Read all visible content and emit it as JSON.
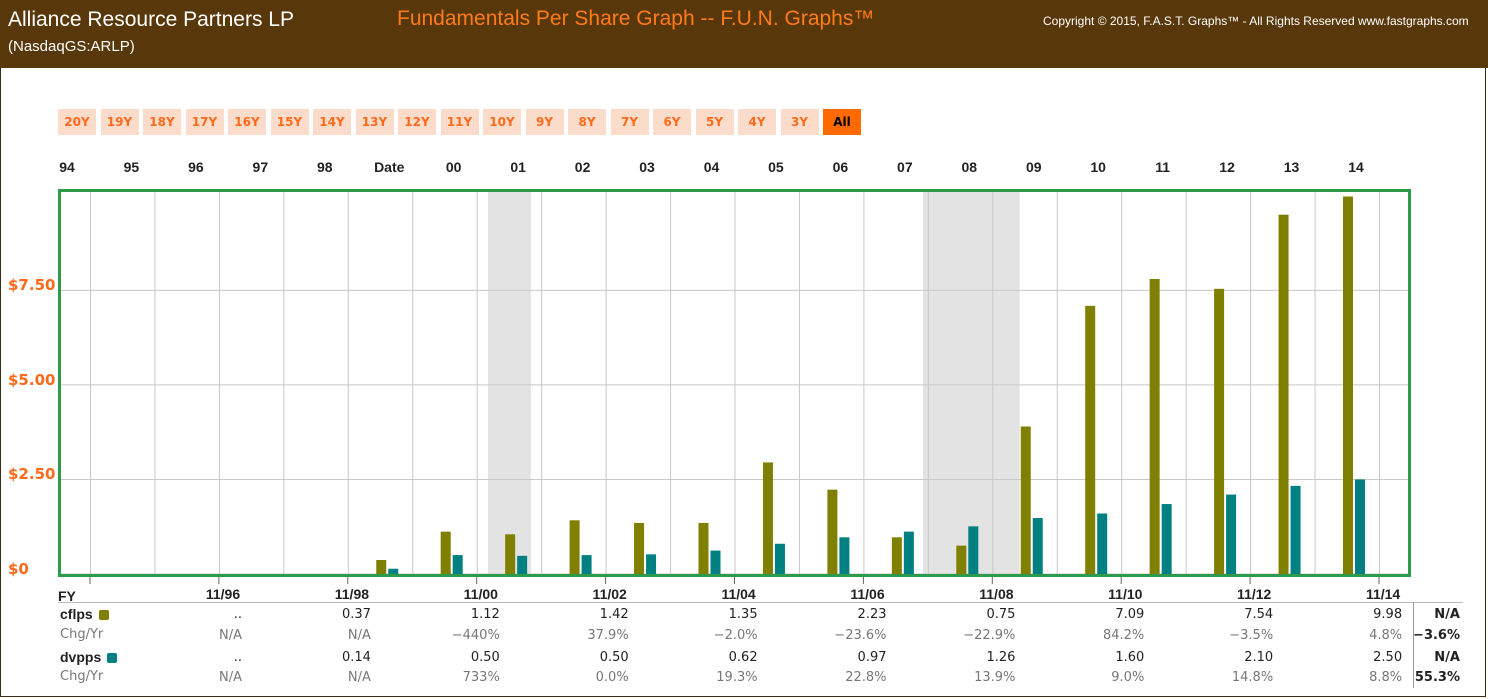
{
  "header": {
    "company": "Alliance Resource Partners LP",
    "ticker": "(NasdaqGS:ARLP)",
    "graph_title": "Fundamentals Per Share Graph -- F.U.N. Graphs™",
    "copyright": "Copyright © 2015, F.A.S.T. Graphs™ - All Rights Reserved www.fastgraphs.com"
  },
  "range_buttons": [
    "20Y",
    "19Y",
    "18Y",
    "17Y",
    "16Y",
    "15Y",
    "14Y",
    "13Y",
    "12Y",
    "11Y",
    "10Y",
    "9Y",
    "8Y",
    "7Y",
    "6Y",
    "5Y",
    "4Y",
    "3Y",
    "All"
  ],
  "active_range": "All",
  "colors": {
    "cflps": "#808000",
    "dvpps": "#008080",
    "recession": "#e3e3e3",
    "border": "#2e9b4a",
    "accent": "#ff6a1a"
  },
  "chart_data": {
    "type": "bar",
    "top_years": [
      "94",
      "95",
      "96",
      "97",
      "98",
      "Date",
      "00",
      "01",
      "02",
      "03",
      "04",
      "05",
      "06",
      "07",
      "08",
      "09",
      "10",
      "11",
      "12",
      "13",
      "14"
    ],
    "y_ticks": [
      "$0",
      "$2.50",
      "$5.00",
      "$7.50"
    ],
    "ylim": [
      0,
      10.1
    ],
    "grid": true,
    "recessions": [
      [
        "2001-03",
        "2001-11"
      ],
      [
        "2007-12",
        "2009-06"
      ]
    ],
    "categories": [
      "1999",
      "2000",
      "2001",
      "2002",
      "2003",
      "2004",
      "2005",
      "2006",
      "2007",
      "2008",
      "2009",
      "2010",
      "2011",
      "2012",
      "2013",
      "2014"
    ],
    "series": [
      {
        "name": "cflps",
        "values": [
          0.37,
          1.12,
          1.05,
          1.42,
          1.35,
          1.35,
          2.95,
          2.23,
          0.97,
          0.75,
          3.9,
          7.09,
          7.8,
          7.54,
          9.5,
          9.98
        ]
      },
      {
        "name": "dvpps",
        "values": [
          0.14,
          0.5,
          0.48,
          0.5,
          0.52,
          0.62,
          0.8,
          0.97,
          1.12,
          1.26,
          1.48,
          1.6,
          1.85,
          2.1,
          2.33,
          2.5
        ]
      }
    ]
  },
  "table": {
    "fy_label": "FY",
    "dates": [
      "11/96",
      "11/98",
      "11/00",
      "11/02",
      "11/04",
      "11/06",
      "11/08",
      "11/10",
      "11/12",
      "11/14"
    ],
    "rows": [
      {
        "label": "cflps",
        "kind": "bold",
        "swatch": "#808000",
        "values": [
          "..",
          "0.37",
          "1.12",
          "1.42",
          "1.35",
          "2.23",
          "0.75",
          "7.09",
          "7.54",
          "9.98"
        ],
        "summary": "N/A"
      },
      {
        "label": "Chg/Yr",
        "kind": "light",
        "values": [
          "N/A",
          "N/A",
          "−440%",
          "37.9%",
          "−2.0%",
          "−23.6%",
          "−22.9%",
          "84.2%",
          "−3.5%",
          "4.8%"
        ],
        "summary": "−3.6%"
      },
      {
        "label": "dvpps",
        "kind": "bold",
        "swatch": "#008080",
        "values": [
          "..",
          "0.14",
          "0.50",
          "0.50",
          "0.62",
          "0.97",
          "1.26",
          "1.60",
          "2.10",
          "2.50"
        ],
        "summary": "N/A"
      },
      {
        "label": "Chg/Yr",
        "kind": "light",
        "values": [
          "N/A",
          "N/A",
          "733%",
          "0.0%",
          "19.3%",
          "22.8%",
          "13.9%",
          "9.0%",
          "14.8%",
          "8.8%"
        ],
        "summary": "55.3%"
      }
    ]
  }
}
